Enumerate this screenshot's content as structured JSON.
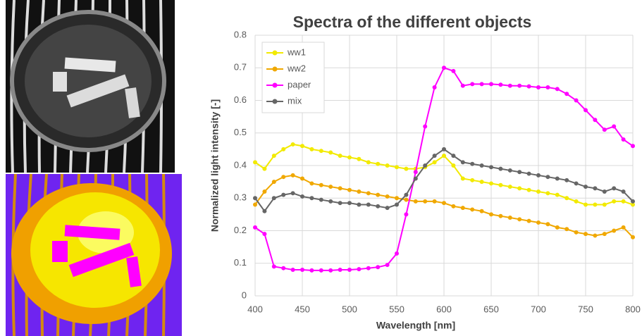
{
  "chart_data": {
    "type": "line",
    "title": "Spectra of the different objects",
    "x_label": "Wavelength [nm]",
    "y_label": "Normalized light intensity [-]",
    "x": [
      400,
      410,
      420,
      430,
      440,
      450,
      460,
      470,
      480,
      490,
      500,
      510,
      520,
      530,
      540,
      550,
      560,
      570,
      580,
      590,
      600,
      610,
      620,
      630,
      640,
      650,
      660,
      670,
      680,
      690,
      700,
      710,
      720,
      730,
      740,
      750,
      760,
      770,
      780,
      790,
      800
    ],
    "series": [
      {
        "name": "ww1",
        "color": "#f2ea00",
        "values": [
          0.41,
          0.39,
          0.43,
          0.45,
          0.465,
          0.46,
          0.45,
          0.445,
          0.44,
          0.43,
          0.425,
          0.42,
          0.41,
          0.405,
          0.4,
          0.395,
          0.39,
          0.39,
          0.395,
          0.41,
          0.43,
          0.4,
          0.36,
          0.355,
          0.35,
          0.345,
          0.34,
          0.335,
          0.33,
          0.325,
          0.32,
          0.315,
          0.31,
          0.3,
          0.29,
          0.28,
          0.28,
          0.28,
          0.29,
          0.29,
          0.28
        ]
      },
      {
        "name": "ww2",
        "color": "#f0a800",
        "values": [
          0.28,
          0.32,
          0.35,
          0.365,
          0.37,
          0.36,
          0.345,
          0.34,
          0.335,
          0.33,
          0.325,
          0.32,
          0.315,
          0.31,
          0.305,
          0.3,
          0.295,
          0.29,
          0.29,
          0.29,
          0.285,
          0.275,
          0.27,
          0.265,
          0.26,
          0.25,
          0.245,
          0.24,
          0.235,
          0.23,
          0.225,
          0.22,
          0.21,
          0.205,
          0.195,
          0.19,
          0.185,
          0.19,
          0.2,
          0.21,
          0.18
        ]
      },
      {
        "name": "paper",
        "color": "#ff00ff",
        "values": [
          0.21,
          0.19,
          0.09,
          0.085,
          0.08,
          0.08,
          0.078,
          0.078,
          0.078,
          0.08,
          0.08,
          0.082,
          0.085,
          0.088,
          0.095,
          0.13,
          0.25,
          0.38,
          0.52,
          0.64,
          0.7,
          0.69,
          0.645,
          0.65,
          0.65,
          0.65,
          0.648,
          0.645,
          0.645,
          0.643,
          0.64,
          0.64,
          0.635,
          0.62,
          0.6,
          0.57,
          0.54,
          0.51,
          0.52,
          0.48,
          0.46
        ]
      },
      {
        "name": "mix",
        "color": "#666666",
        "values": [
          0.3,
          0.26,
          0.3,
          0.31,
          0.315,
          0.305,
          0.3,
          0.295,
          0.29,
          0.285,
          0.285,
          0.28,
          0.28,
          0.275,
          0.27,
          0.28,
          0.31,
          0.36,
          0.4,
          0.43,
          0.45,
          0.43,
          0.41,
          0.405,
          0.4,
          0.395,
          0.39,
          0.385,
          0.38,
          0.375,
          0.37,
          0.365,
          0.36,
          0.355,
          0.345,
          0.335,
          0.33,
          0.32,
          0.33,
          0.32,
          0.29
        ]
      }
    ],
    "xlim": [
      400,
      800
    ],
    "xticks": [
      400,
      450,
      500,
      550,
      600,
      650,
      700,
      750,
      800
    ],
    "ylim": [
      0,
      0.8
    ],
    "yticks": [
      0,
      0.1,
      0.2,
      0.3,
      0.4,
      0.5,
      0.6,
      0.7,
      0.8
    ],
    "grid": true,
    "legend": "top-left"
  }
}
